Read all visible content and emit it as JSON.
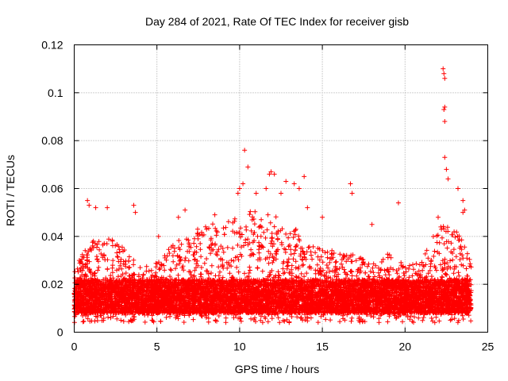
{
  "chart_data": {
    "type": "scatter",
    "title": "Day 284 of 2021, Rate Of TEC Index for receiver gisb",
    "xlabel": "GPS time / hours",
    "ylabel": "ROTI / TECUs",
    "xlim": [
      0,
      25
    ],
    "ylim": [
      0,
      0.12
    ],
    "x_ticks": [
      0,
      5,
      10,
      15,
      20,
      25
    ],
    "x_tick_labels": [
      "0",
      "5",
      "10",
      "15",
      "20",
      "25"
    ],
    "y_ticks": [
      0,
      0.02,
      0.04,
      0.06,
      0.08,
      0.1,
      0.12
    ],
    "y_tick_labels": [
      "0",
      "0.02",
      "0.04",
      "0.06",
      "0.08",
      "0.1",
      "0.12"
    ],
    "grid": true,
    "marker": "+",
    "colors": {
      "series": "#ff0000",
      "grid": "#a0a0a0",
      "frame": "#000000"
    },
    "x_range_hours": [
      0,
      24
    ],
    "baseline_band": {
      "low": 0.008,
      "high": 0.022
    },
    "envelope": [
      {
        "x": 0,
        "high": 0.027
      },
      {
        "x": 1,
        "high": 0.038
      },
      {
        "x": 2,
        "high": 0.04
      },
      {
        "x": 3,
        "high": 0.035
      },
      {
        "x": 4,
        "high": 0.027
      },
      {
        "x": 5,
        "high": 0.03
      },
      {
        "x": 6,
        "high": 0.037
      },
      {
        "x": 7,
        "high": 0.042
      },
      {
        "x": 8,
        "high": 0.045
      },
      {
        "x": 9,
        "high": 0.046
      },
      {
        "x": 10,
        "high": 0.048
      },
      {
        "x": 11,
        "high": 0.052
      },
      {
        "x": 12,
        "high": 0.05
      },
      {
        "x": 13,
        "high": 0.046
      },
      {
        "x": 14,
        "high": 0.04
      },
      {
        "x": 15,
        "high": 0.035
      },
      {
        "x": 16,
        "high": 0.034
      },
      {
        "x": 17,
        "high": 0.032
      },
      {
        "x": 18,
        "high": 0.03
      },
      {
        "x": 19,
        "high": 0.033
      },
      {
        "x": 20,
        "high": 0.028
      },
      {
        "x": 21,
        "high": 0.03
      },
      {
        "x": 22,
        "high": 0.046
      },
      {
        "x": 23,
        "high": 0.045
      },
      {
        "x": 24,
        "high": 0.03
      }
    ],
    "notable_points": [
      {
        "x": 0.8,
        "y": 0.055
      },
      {
        "x": 0.9,
        "y": 0.053
      },
      {
        "x": 1.3,
        "y": 0.052
      },
      {
        "x": 2.0,
        "y": 0.052
      },
      {
        "x": 3.6,
        "y": 0.053
      },
      {
        "x": 3.7,
        "y": 0.05
      },
      {
        "x": 6.7,
        "y": 0.051
      },
      {
        "x": 8.5,
        "y": 0.049
      },
      {
        "x": 9.9,
        "y": 0.058
      },
      {
        "x": 10.0,
        "y": 0.06
      },
      {
        "x": 10.2,
        "y": 0.062
      },
      {
        "x": 10.3,
        "y": 0.076
      },
      {
        "x": 10.5,
        "y": 0.069
      },
      {
        "x": 11.0,
        "y": 0.058
      },
      {
        "x": 11.6,
        "y": 0.06
      },
      {
        "x": 11.8,
        "y": 0.066
      },
      {
        "x": 11.9,
        "y": 0.067
      },
      {
        "x": 12.1,
        "y": 0.066
      },
      {
        "x": 12.5,
        "y": 0.058
      },
      {
        "x": 12.8,
        "y": 0.063
      },
      {
        "x": 13.3,
        "y": 0.062
      },
      {
        "x": 13.6,
        "y": 0.06
      },
      {
        "x": 13.9,
        "y": 0.065
      },
      {
        "x": 16.7,
        "y": 0.062
      },
      {
        "x": 16.8,
        "y": 0.058
      },
      {
        "x": 19.6,
        "y": 0.054
      },
      {
        "x": 22.3,
        "y": 0.11
      },
      {
        "x": 22.35,
        "y": 0.108
      },
      {
        "x": 22.4,
        "y": 0.106
      },
      {
        "x": 22.4,
        "y": 0.094
      },
      {
        "x": 22.35,
        "y": 0.093
      },
      {
        "x": 22.4,
        "y": 0.088
      },
      {
        "x": 22.4,
        "y": 0.073
      },
      {
        "x": 22.5,
        "y": 0.068
      },
      {
        "x": 22.6,
        "y": 0.064
      },
      {
        "x": 23.2,
        "y": 0.06
      },
      {
        "x": 23.5,
        "y": 0.055
      },
      {
        "x": 23.6,
        "y": 0.051
      },
      {
        "x": 23.5,
        "y": 0.05
      },
      {
        "x": 22.0,
        "y": 0.048
      },
      {
        "x": 18.0,
        "y": 0.045
      },
      {
        "x": 15.0,
        "y": 0.048
      },
      {
        "x": 14.1,
        "y": 0.052
      },
      {
        "x": 6.3,
        "y": 0.048
      },
      {
        "x": 5.1,
        "y": 0.04
      }
    ]
  }
}
